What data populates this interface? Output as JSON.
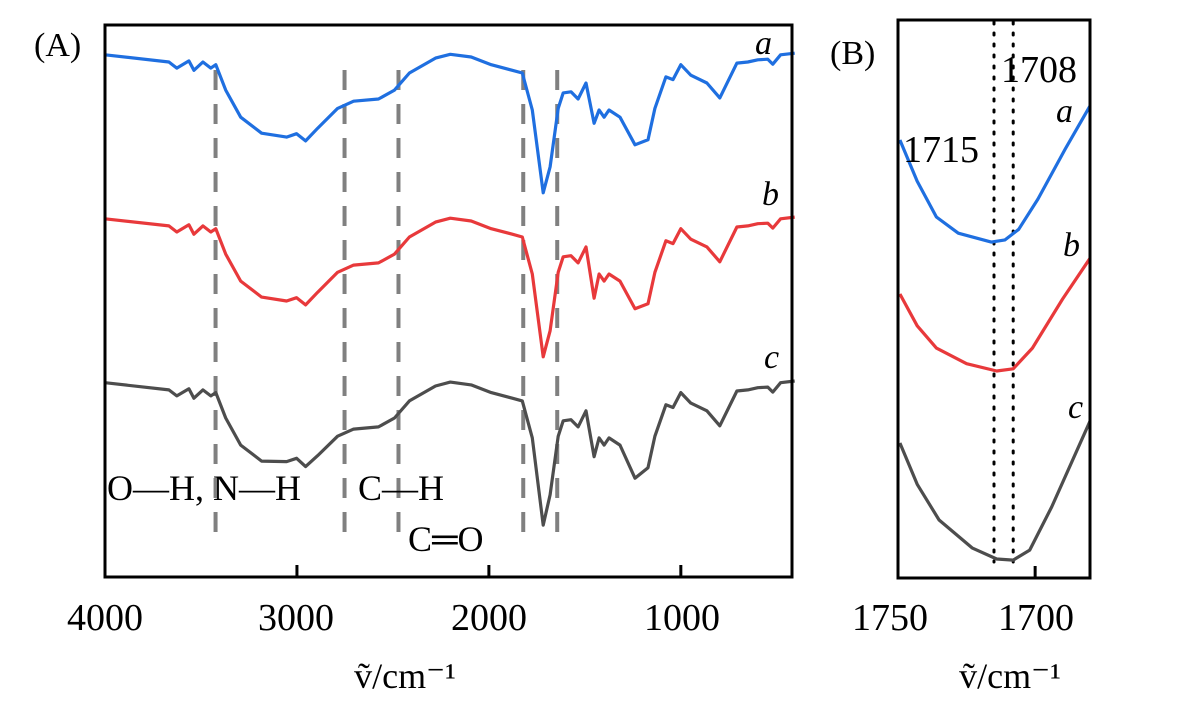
{
  "chart_data": [
    {
      "type": "line",
      "panel_label": "(A)",
      "xlabel": "ṽ/cm⁻¹",
      "ylabel": "",
      "xlim": [
        4000,
        400
      ],
      "x_reversed": true,
      "y_ticks_shown": false,
      "grid": false,
      "xticks": [
        4000,
        3000,
        2000,
        1000
      ],
      "xtick_labels": [
        "4000",
        "3000",
        "2000",
        "1000"
      ],
      "reference_lines": {
        "style": "dashed",
        "color": "#808080",
        "x": [
          3424,
          2752,
          2471,
          1821,
          1644
        ]
      },
      "annotations": [
        "O—H, N—H",
        "C—H",
        "C═O"
      ],
      "x": [
        4000,
        3667,
        3626,
        3563,
        3537,
        3490,
        3449,
        3423,
        3371,
        3293,
        3184,
        3054,
        3002,
        2955,
        2892,
        2788,
        2705,
        2575,
        2492,
        2414,
        2278,
        2201,
        2092,
        1988,
        1878,
        1826,
        1774,
        1717,
        1681,
        1639,
        1613,
        1572,
        1535,
        1494,
        1452,
        1426,
        1400,
        1374,
        1317,
        1239,
        1171,
        1135,
        1078,
        1041,
        1000,
        948,
        864,
        797,
        708,
        651,
        599,
        547,
        521,
        480,
        407
      ],
      "series": [
        {
          "name": "a",
          "color": "#1f6fe0",
          "values": [
            94.6,
            93.3,
            92.2,
            93.5,
            91.8,
            93.3,
            92.2,
            92.8,
            88.2,
            83.3,
            80.4,
            79.7,
            80.3,
            79.0,
            81.3,
            84.9,
            86.2,
            86.6,
            88.2,
            91.3,
            94.0,
            94.7,
            94.2,
            92.8,
            91.8,
            91.3,
            84.6,
            69.6,
            74.3,
            84.9,
            87.7,
            87.9,
            86.6,
            89.5,
            82.2,
            84.6,
            83.3,
            84.6,
            83.3,
            78.3,
            79.2,
            84.9,
            90.6,
            90.1,
            92.8,
            90.9,
            89.5,
            86.8,
            93.1,
            93.3,
            93.7,
            93.8,
            92.9,
            94.6,
            94.9
          ]
        },
        {
          "name": "b",
          "color": "#e8393b",
          "values": [
            64.9,
            63.6,
            62.5,
            63.8,
            62.1,
            63.6,
            62.5,
            63.1,
            58.5,
            53.6,
            50.7,
            50.0,
            50.6,
            49.3,
            51.6,
            55.2,
            56.5,
            56.9,
            58.5,
            61.6,
            64.3,
            65.0,
            64.5,
            63.1,
            62.1,
            61.6,
            54.9,
            39.9,
            44.6,
            55.2,
            58.0,
            58.2,
            56.9,
            59.8,
            50.5,
            54.9,
            53.6,
            54.9,
            53.6,
            48.6,
            49.5,
            55.2,
            60.9,
            60.4,
            63.1,
            61.2,
            59.8,
            57.1,
            63.4,
            63.6,
            64.0,
            64.1,
            63.2,
            64.9,
            65.2
          ]
        },
        {
          "name": "c",
          "color": "#4d4d4d",
          "values": [
            35.2,
            33.9,
            32.8,
            34.1,
            32.4,
            33.9,
            32.8,
            33.4,
            28.8,
            23.9,
            21.0,
            20.9,
            21.5,
            20.0,
            22.0,
            25.5,
            26.8,
            27.2,
            28.8,
            31.9,
            34.6,
            35.3,
            34.8,
            33.4,
            32.4,
            31.9,
            25.2,
            9.4,
            14.9,
            25.5,
            28.3,
            28.5,
            27.2,
            30.1,
            21.8,
            25.2,
            23.9,
            25.2,
            23.9,
            17.9,
            19.8,
            25.5,
            31.2,
            30.7,
            33.4,
            31.5,
            30.1,
            27.4,
            33.7,
            33.9,
            34.3,
            34.4,
            33.5,
            35.2,
            35.5
          ]
        }
      ]
    },
    {
      "type": "line",
      "panel_label": "(B)",
      "xlabel": "ṽ/cm⁻¹",
      "ylabel": "",
      "xlim": [
        1750,
        1680
      ],
      "x_reversed": true,
      "y_ticks_shown": false,
      "grid": false,
      "xticks": [
        1750,
        1700
      ],
      "xtick_labels": [
        "1750",
        "1700"
      ],
      "reference_lines": {
        "style": "dotted",
        "color": "#000000",
        "x": [
          1715,
          1708
        ],
        "labels": [
          "1715",
          "1708"
        ]
      },
      "series": [
        {
          "name": "a",
          "color": "#1f6fe0",
          "x": [
            1749.3,
            1743,
            1736,
            1728,
            1716,
            1711,
            1706,
            1699,
            1689,
            1680
          ],
          "values": [
            78.5,
            71.1,
            64.7,
            61.8,
            60.2,
            60.6,
            62.5,
            67.9,
            76.9,
            84.6
          ]
        },
        {
          "name": "b",
          "color": "#e8393b",
          "x": [
            1749.3,
            1743,
            1736,
            1725,
            1714,
            1708,
            1701,
            1690,
            1680
          ],
          "values": [
            50.9,
            45.2,
            41.2,
            38.4,
            37.1,
            37.5,
            41.2,
            50.0,
            57.3
          ]
        },
        {
          "name": "c",
          "color": "#4d4d4d",
          "x": [
            1749.3,
            1743,
            1735,
            1723,
            1714,
            1708,
            1702,
            1694,
            1680
          ],
          "values": [
            24.2,
            16.8,
            10.4,
            5.4,
            3.4,
            3.2,
            5.0,
            12.7,
            28.1
          ]
        }
      ]
    }
  ]
}
